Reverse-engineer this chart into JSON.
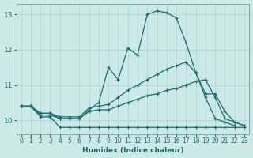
{
  "title": "",
  "xlabel": "Humidex (Indice chaleur)",
  "ylabel": "",
  "bg_color": "#cce8e8",
  "line_color": "#1a6e6e",
  "grid_color": "#b0d4d4",
  "xlim": [
    -0.5,
    23.5
  ],
  "ylim": [
    9.6,
    13.3
  ],
  "yticks": [
    10,
    11,
    12,
    13
  ],
  "xticks": [
    0,
    1,
    2,
    3,
    4,
    5,
    6,
    7,
    8,
    9,
    10,
    11,
    12,
    13,
    14,
    15,
    16,
    17,
    18,
    19,
    20,
    21,
    22,
    23
  ],
  "series": [
    {
      "x": [
        0,
        1,
        2,
        3,
        4,
        5,
        6,
        7,
        8,
        9,
        10,
        11,
        12,
        13,
        14,
        15,
        16,
        17,
        18,
        19,
        20,
        21,
        22,
        23
      ],
      "y": [
        10.4,
        10.4,
        10.1,
        10.1,
        9.8,
        9.8,
        9.8,
        9.8,
        9.8,
        9.8,
        9.8,
        9.8,
        9.8,
        9.8,
        9.8,
        9.8,
        9.8,
        9.8,
        9.8,
        9.8,
        9.8,
        9.8,
        9.8,
        9.8
      ]
    },
    {
      "x": [
        0,
        1,
        2,
        3,
        4,
        5,
        6,
        7,
        8,
        9,
        10,
        11,
        12,
        13,
        14,
        15,
        16,
        17,
        18,
        19,
        20,
        21,
        22,
        23
      ],
      "y": [
        10.4,
        10.4,
        10.15,
        10.15,
        10.05,
        10.05,
        10.05,
        10.25,
        10.3,
        10.3,
        10.4,
        10.5,
        10.6,
        10.7,
        10.75,
        10.85,
        10.9,
        11.0,
        11.1,
        11.15,
        10.65,
        10.05,
        9.95,
        9.85
      ]
    },
    {
      "x": [
        0,
        1,
        2,
        3,
        4,
        5,
        6,
        7,
        8,
        9,
        10,
        11,
        12,
        13,
        14,
        15,
        16,
        17,
        18,
        19,
        20,
        21,
        22,
        23
      ],
      "y": [
        10.4,
        10.4,
        10.2,
        10.2,
        10.1,
        10.1,
        10.1,
        10.35,
        10.4,
        10.45,
        10.65,
        10.85,
        11.0,
        11.15,
        11.3,
        11.45,
        11.55,
        11.65,
        11.35,
        10.75,
        10.75,
        10.25,
        9.95,
        9.85
      ]
    },
    {
      "x": [
        0,
        1,
        2,
        3,
        4,
        5,
        6,
        7,
        8,
        9,
        10,
        11,
        12,
        13,
        14,
        15,
        16,
        17,
        18,
        19,
        20,
        21,
        22
      ],
      "y": [
        10.4,
        10.4,
        10.2,
        10.2,
        10.05,
        10.05,
        10.05,
        10.3,
        10.5,
        11.5,
        11.15,
        12.05,
        11.85,
        13.0,
        13.1,
        13.05,
        12.9,
        12.2,
        11.35,
        10.65,
        10.05,
        9.95,
        9.85
      ]
    }
  ]
}
